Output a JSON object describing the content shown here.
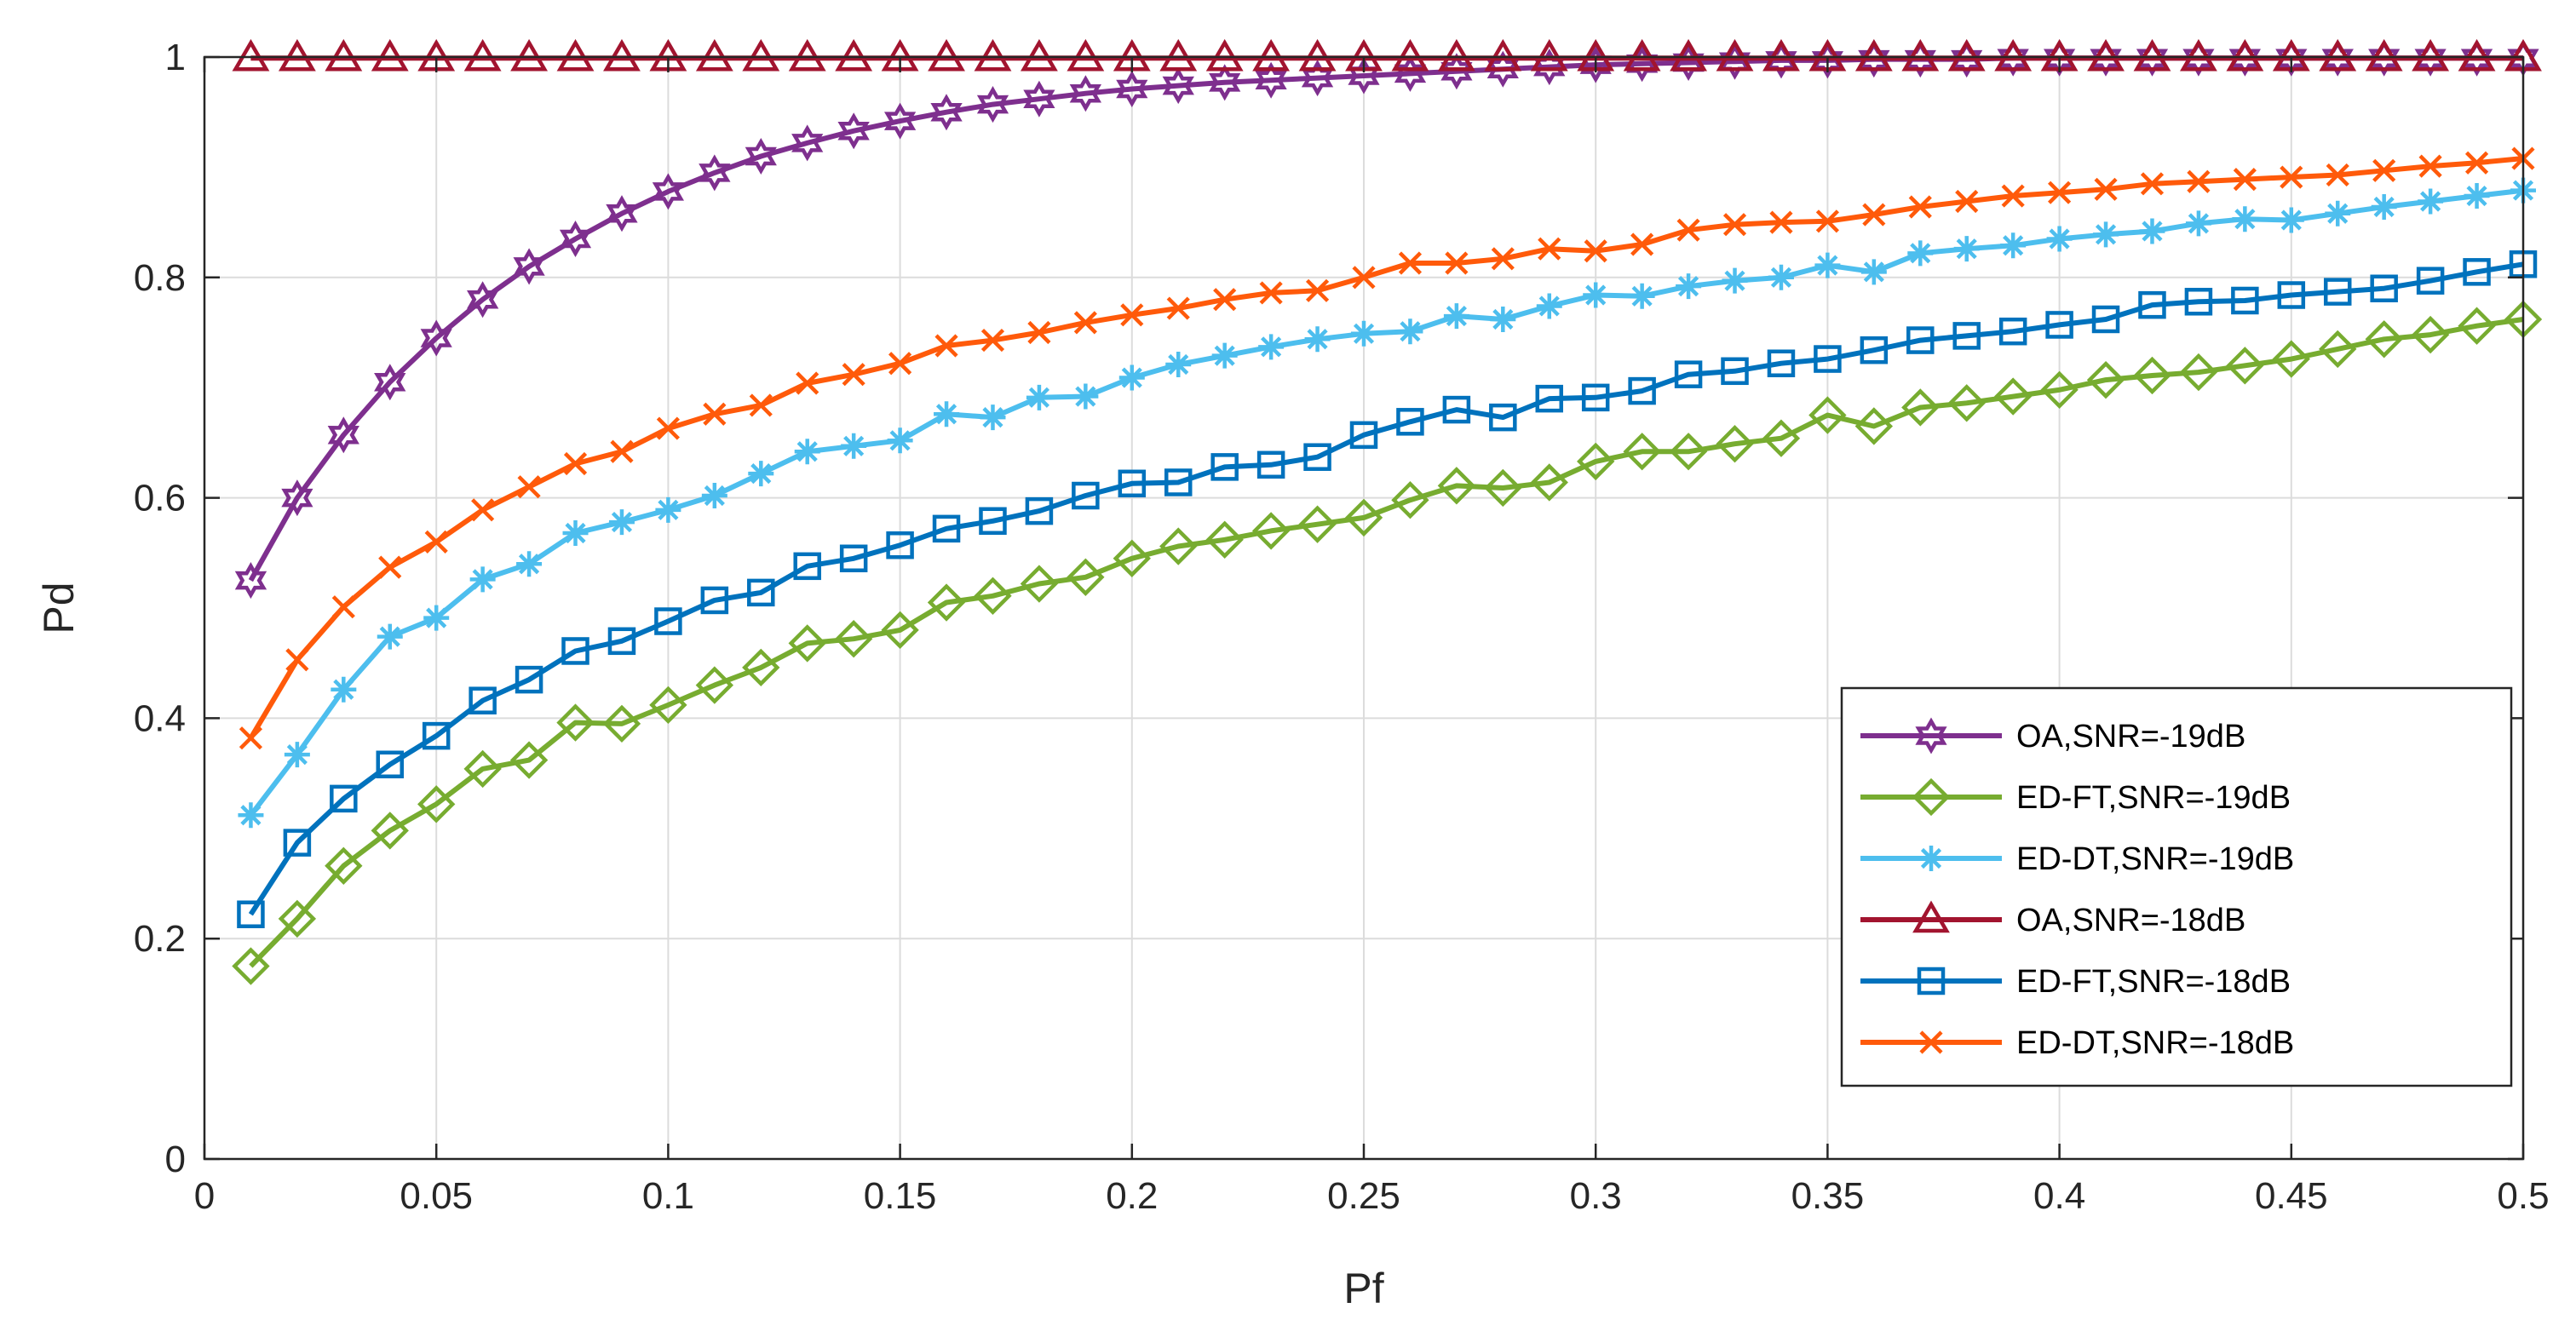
{
  "chart_data": {
    "type": "line",
    "title": "",
    "xlabel": "Pf",
    "ylabel": "Pd",
    "xlim": [
      0,
      0.5
    ],
    "ylim": [
      0,
      1
    ],
    "grid": true,
    "legend_location": "bottom-right",
    "xticks": [
      0,
      0.05,
      0.1,
      0.15,
      0.2,
      0.25,
      0.3,
      0.35,
      0.4,
      0.45,
      0.5
    ],
    "xtick_labels": [
      "0",
      "0.05",
      "0.1",
      "0.15",
      "0.2",
      "0.25",
      "0.3",
      "0.35",
      "0.4",
      "0.45",
      "0.5"
    ],
    "yticks": [
      0,
      0.2,
      0.4,
      0.6,
      0.8,
      1
    ],
    "ytick_labels": [
      "0",
      "0.2",
      "0.4",
      "0.6",
      "0.8",
      "1"
    ],
    "x": [
      0.01,
      0.02,
      0.03,
      0.04,
      0.05,
      0.06,
      0.07,
      0.08,
      0.09,
      0.1,
      0.11,
      0.12,
      0.13,
      0.14,
      0.15,
      0.16,
      0.17,
      0.18,
      0.19,
      0.2,
      0.21,
      0.22,
      0.23,
      0.24,
      0.25,
      0.26,
      0.27,
      0.28,
      0.29,
      0.3,
      0.31,
      0.32,
      0.33,
      0.34,
      0.35,
      0.36,
      0.37,
      0.38,
      0.39,
      0.4,
      0.41,
      0.42,
      0.43,
      0.44,
      0.45,
      0.46,
      0.47,
      0.48,
      0.49,
      0.5
    ],
    "series": [
      {
        "name": "OA,SNR=-19dB",
        "color": "#7E2F8E",
        "marker": "hexagram",
        "values": [
          0.525,
          0.6,
          0.657,
          0.705,
          0.745,
          0.78,
          0.81,
          0.835,
          0.858,
          0.878,
          0.895,
          0.91,
          0.922,
          0.933,
          0.942,
          0.95,
          0.957,
          0.962,
          0.967,
          0.971,
          0.974,
          0.977,
          0.979,
          0.981,
          0.983,
          0.985,
          0.987,
          0.989,
          0.991,
          0.993,
          0.994,
          0.995,
          0.996,
          0.997,
          0.997,
          0.998,
          0.998,
          0.998,
          0.999,
          0.999,
          0.999,
          0.999,
          0.999,
          0.999,
          0.999,
          0.999,
          0.999,
          0.999,
          0.999,
          0.999
        ]
      },
      {
        "name": "ED-FT,SNR=-19dB",
        "color": "#77AC30",
        "marker": "diamond",
        "values": [
          0.175,
          0.218,
          0.266,
          0.298,
          0.322,
          0.354,
          0.362,
          0.396,
          0.395,
          0.412,
          0.43,
          0.446,
          0.468,
          0.472,
          0.48,
          0.505,
          0.511,
          0.522,
          0.528,
          0.545,
          0.556,
          0.562,
          0.57,
          0.576,
          0.582,
          0.598,
          0.611,
          0.609,
          0.614,
          0.633,
          0.642,
          0.642,
          0.649,
          0.654,
          0.675,
          0.665,
          0.682,
          0.686,
          0.692,
          0.698,
          0.707,
          0.711,
          0.714,
          0.72,
          0.726,
          0.735,
          0.744,
          0.748,
          0.756,
          0.762
        ]
      },
      {
        "name": "ED-DT,SNR=-19dB",
        "color": "#4DBEEE",
        "marker": "asterisk",
        "values": [
          0.312,
          0.367,
          0.426,
          0.474,
          0.491,
          0.526,
          0.54,
          0.568,
          0.578,
          0.589,
          0.602,
          0.622,
          0.642,
          0.647,
          0.652,
          0.676,
          0.673,
          0.691,
          0.692,
          0.709,
          0.721,
          0.729,
          0.737,
          0.744,
          0.749,
          0.751,
          0.765,
          0.762,
          0.774,
          0.784,
          0.783,
          0.792,
          0.797,
          0.8,
          0.811,
          0.805,
          0.822,
          0.826,
          0.829,
          0.835,
          0.839,
          0.842,
          0.849,
          0.853,
          0.852,
          0.858,
          0.864,
          0.869,
          0.874,
          0.879
        ]
      },
      {
        "name": "OA,SNR=-18dB",
        "color": "#A2142F",
        "marker": "triangle",
        "values": [
          0.999,
          0.999,
          0.999,
          0.999,
          0.999,
          0.999,
          0.999,
          0.999,
          0.999,
          0.999,
          0.999,
          0.999,
          0.999,
          0.999,
          0.999,
          0.999,
          0.999,
          0.999,
          0.999,
          0.999,
          0.999,
          0.999,
          0.999,
          0.999,
          0.999,
          0.999,
          0.999,
          0.999,
          0.999,
          0.999,
          0.999,
          0.999,
          0.999,
          0.999,
          0.999,
          0.999,
          0.999,
          0.999,
          0.999,
          0.999,
          0.999,
          0.999,
          0.999,
          0.999,
          0.999,
          0.999,
          0.999,
          0.999,
          0.999,
          0.999
        ]
      },
      {
        "name": "ED-FT,SNR=-18dB",
        "color": "#0072BD",
        "marker": "square",
        "values": [
          0.222,
          0.287,
          0.327,
          0.358,
          0.384,
          0.416,
          0.435,
          0.461,
          0.47,
          0.488,
          0.507,
          0.514,
          0.538,
          0.545,
          0.557,
          0.572,
          0.579,
          0.588,
          0.602,
          0.613,
          0.614,
          0.628,
          0.63,
          0.637,
          0.657,
          0.669,
          0.68,
          0.673,
          0.69,
          0.691,
          0.697,
          0.712,
          0.715,
          0.722,
          0.726,
          0.734,
          0.743,
          0.747,
          0.751,
          0.757,
          0.762,
          0.775,
          0.778,
          0.779,
          0.784,
          0.787,
          0.79,
          0.797,
          0.805,
          0.812
        ]
      },
      {
        "name": "ED-DT,SNR=-18dB",
        "color": "#FF5A0A",
        "marker": "x",
        "values": [
          0.382,
          0.453,
          0.501,
          0.537,
          0.56,
          0.589,
          0.61,
          0.631,
          0.642,
          0.663,
          0.676,
          0.684,
          0.704,
          0.712,
          0.722,
          0.738,
          0.743,
          0.75,
          0.759,
          0.766,
          0.772,
          0.78,
          0.786,
          0.788,
          0.8,
          0.813,
          0.813,
          0.817,
          0.826,
          0.824,
          0.83,
          0.843,
          0.848,
          0.85,
          0.851,
          0.857,
          0.864,
          0.869,
          0.874,
          0.877,
          0.88,
          0.885,
          0.887,
          0.889,
          0.891,
          0.893,
          0.897,
          0.901,
          0.904,
          0.908
        ]
      }
    ]
  }
}
